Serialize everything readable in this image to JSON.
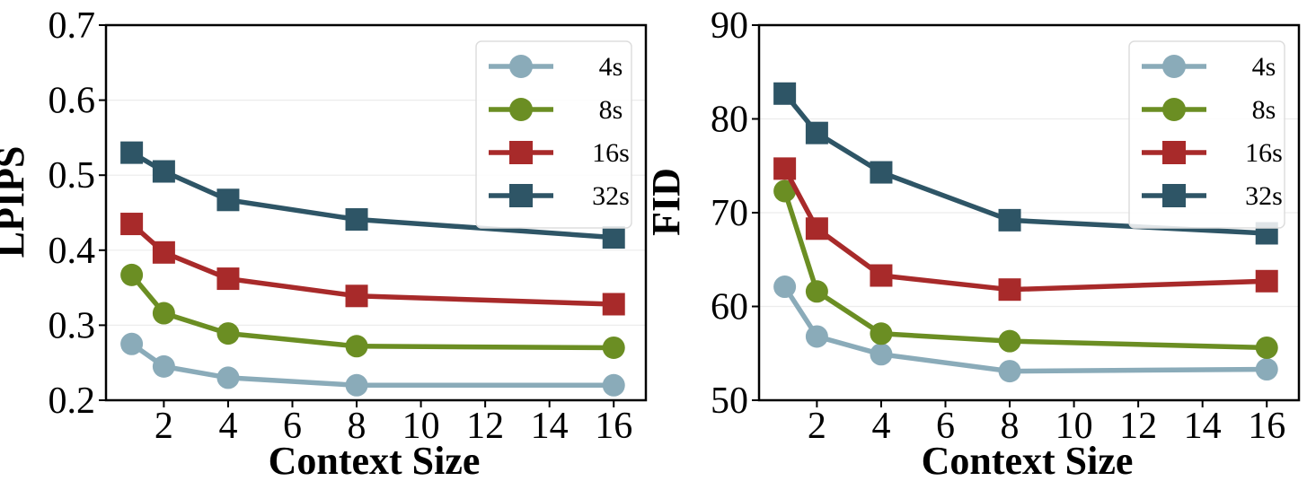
{
  "chart_data": [
    {
      "id": "lpips",
      "type": "line",
      "xlabel": "Context Size",
      "ylabel": "LPIPS",
      "xlim": [
        0.2,
        17
      ],
      "ylim": [
        0.2,
        0.7
      ],
      "xticks": [
        2,
        4,
        6,
        8,
        10,
        12,
        14,
        16
      ],
      "yticks": [
        0.2,
        0.3,
        0.4,
        0.5,
        0.6,
        0.7
      ],
      "ytick_labels": [
        "0.2",
        "0.3",
        "0.4",
        "0.5",
        "0.6",
        "0.7"
      ],
      "x": [
        1,
        2,
        4,
        8,
        16
      ],
      "grid": "horizontal",
      "legend": "top-right",
      "series": [
        {
          "name": "4s",
          "marker": "circle",
          "color": "#8aabb9",
          "values": [
            0.275,
            0.245,
            0.23,
            0.22,
            0.22
          ]
        },
        {
          "name": "8s",
          "marker": "circle",
          "color": "#6b8e23",
          "values": [
            0.367,
            0.316,
            0.289,
            0.272,
            0.27
          ]
        },
        {
          "name": "16s",
          "marker": "square",
          "color": "#a82a2a",
          "values": [
            0.435,
            0.397,
            0.362,
            0.339,
            0.328
          ]
        },
        {
          "name": "32s",
          "marker": "square",
          "color": "#2e5566",
          "values": [
            0.53,
            0.505,
            0.467,
            0.441,
            0.417
          ]
        }
      ]
    },
    {
      "id": "fid",
      "type": "line",
      "xlabel": "Context Size",
      "ylabel": "FID",
      "xlim": [
        0.2,
        17
      ],
      "ylim": [
        50,
        90
      ],
      "xticks": [
        2,
        4,
        6,
        8,
        10,
        12,
        14,
        16
      ],
      "yticks": [
        50,
        60,
        70,
        80,
        90
      ],
      "ytick_labels": [
        "50",
        "60",
        "70",
        "80",
        "90"
      ],
      "x": [
        1,
        2,
        4,
        8,
        16
      ],
      "grid": "horizontal",
      "legend": "top-right",
      "series": [
        {
          "name": "4s",
          "marker": "circle",
          "color": "#8aabb9",
          "values": [
            62.1,
            56.8,
            54.9,
            53.1,
            53.3
          ]
        },
        {
          "name": "8s",
          "marker": "circle",
          "color": "#6b8e23",
          "values": [
            72.3,
            61.6,
            57.1,
            56.3,
            55.6
          ]
        },
        {
          "name": "16s",
          "marker": "square",
          "color": "#a82a2a",
          "values": [
            74.7,
            68.3,
            63.3,
            61.8,
            62.7
          ]
        },
        {
          "name": "32s",
          "marker": "square",
          "color": "#2e5566",
          "values": [
            82.7,
            78.5,
            74.3,
            69.2,
            67.8
          ]
        }
      ]
    }
  ]
}
